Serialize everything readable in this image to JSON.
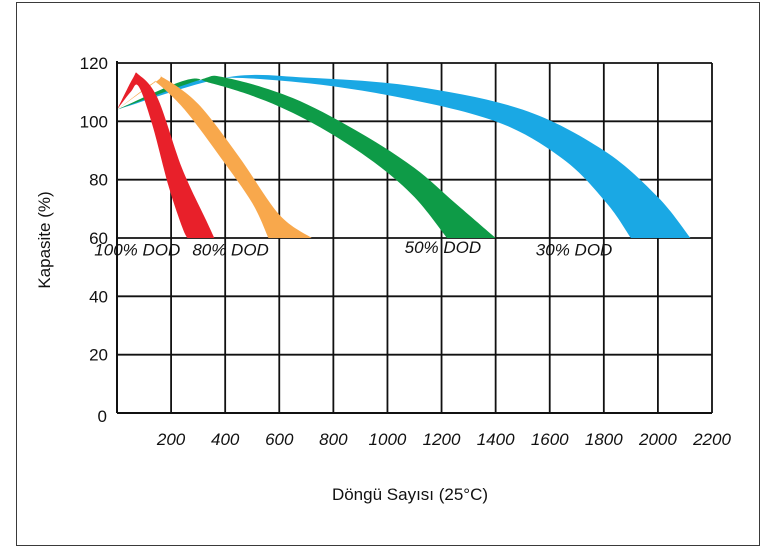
{
  "chart_data": {
    "type": "area",
    "title": "",
    "xlabel": "Döngü Sayısı (25°C)",
    "ylabel": "Kapasite (%)",
    "x_ticks": [
      "200",
      "400",
      "600",
      "800",
      "1000",
      "1200",
      "1400",
      "1600",
      "1800",
      "2000",
      "2200"
    ],
    "y_ticks": [
      "0",
      "20",
      "40",
      "60",
      "80",
      "100",
      "120"
    ],
    "xlim": [
      0,
      2200
    ],
    "ylim": [
      0,
      120
    ],
    "grid": true,
    "series": [
      {
        "name": "100% DOD",
        "color": "#e8202a",
        "upper": [
          [
            0,
            104
          ],
          [
            60,
            115
          ],
          [
            80,
            116
          ],
          [
            150,
            108
          ],
          [
            240,
            84
          ],
          [
            330,
            66
          ],
          [
            360,
            60
          ]
        ],
        "lower": [
          [
            0,
            104
          ],
          [
            50,
            110
          ],
          [
            80,
            112
          ],
          [
            130,
            99
          ],
          [
            190,
            78
          ],
          [
            240,
            64
          ],
          [
            260,
            60
          ]
        ]
      },
      {
        "name": "80% DOD",
        "color": "#f8a84c",
        "upper": [
          [
            0,
            104
          ],
          [
            150,
            114
          ],
          [
            170,
            115
          ],
          [
            300,
            106
          ],
          [
            450,
            88
          ],
          [
            600,
            68
          ],
          [
            720,
            60
          ]
        ],
        "lower": [
          [
            0,
            104
          ],
          [
            130,
            113
          ],
          [
            150,
            113
          ],
          [
            250,
            104
          ],
          [
            380,
            88
          ],
          [
            500,
            72
          ],
          [
            560,
            60
          ]
        ]
      },
      {
        "name": "50% DOD",
        "color": "#0e9b47",
        "upper": [
          [
            0,
            104
          ],
          [
            300,
            114
          ],
          [
            400,
            115
          ],
          [
            650,
            108
          ],
          [
            900,
            96
          ],
          [
            1100,
            84
          ],
          [
            1250,
            72
          ],
          [
            1400,
            60
          ]
        ],
        "lower": [
          [
            0,
            104
          ],
          [
            250,
            114
          ],
          [
            350,
            113
          ],
          [
            550,
            107
          ],
          [
            750,
            98
          ],
          [
            950,
            86
          ],
          [
            1100,
            74
          ],
          [
            1220,
            60
          ]
        ]
      },
      {
        "name": "30% DOD",
        "color": "#1aa8e4",
        "upper": [
          [
            0,
            104
          ],
          [
            400,
            115
          ],
          [
            700,
            115
          ],
          [
            1100,
            112
          ],
          [
            1500,
            104
          ],
          [
            1800,
            90
          ],
          [
            2000,
            74
          ],
          [
            2120,
            60
          ]
        ],
        "lower": [
          [
            0,
            104
          ],
          [
            300,
            114
          ],
          [
            600,
            114
          ],
          [
            1000,
            109
          ],
          [
            1400,
            100
          ],
          [
            1650,
            87
          ],
          [
            1810,
            72
          ],
          [
            1900,
            60
          ]
        ]
      }
    ],
    "annotations": [
      {
        "text": "100% DOD",
        "x": 75,
        "y": 56
      },
      {
        "text": "80% DOD",
        "x": 420,
        "y": 56
      },
      {
        "text": "50% DOD",
        "x": 1205,
        "y": 57
      },
      {
        "text": "30% DOD",
        "x": 1690,
        "y": 56
      }
    ]
  }
}
